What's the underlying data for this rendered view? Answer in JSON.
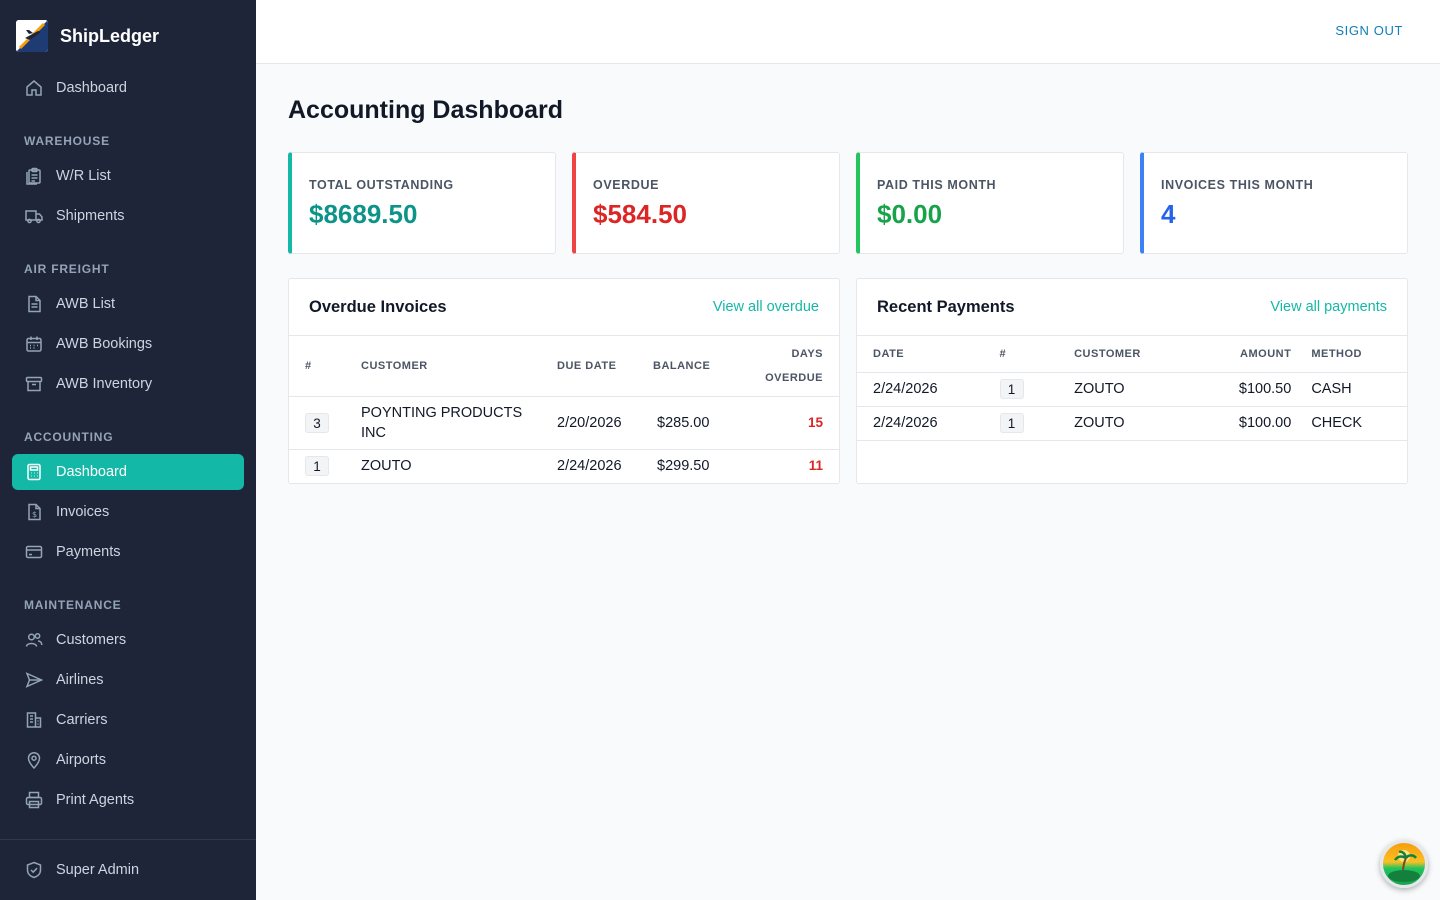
{
  "app": {
    "name": "ShipLedger"
  },
  "header": {
    "sign_out": "SIGN OUT"
  },
  "nav": {
    "top": [
      {
        "label": "Dashboard",
        "icon": "home-icon"
      }
    ],
    "sections": [
      {
        "title": "WAREHOUSE",
        "items": [
          {
            "label": "W/R List",
            "icon": "clipboard-list-icon"
          },
          {
            "label": "Shipments",
            "icon": "truck-icon"
          }
        ]
      },
      {
        "title": "AIR FREIGHT",
        "items": [
          {
            "label": "AWB List",
            "icon": "document-icon"
          },
          {
            "label": "AWB Bookings",
            "icon": "calendar-icon"
          },
          {
            "label": "AWB Inventory",
            "icon": "archive-box-icon"
          }
        ]
      },
      {
        "title": "ACCOUNTING",
        "items": [
          {
            "label": "Dashboard",
            "icon": "calculator-icon",
            "active": true
          },
          {
            "label": "Invoices",
            "icon": "invoice-dollar-icon"
          },
          {
            "label": "Payments",
            "icon": "credit-card-icon"
          }
        ]
      },
      {
        "title": "MAINTENANCE",
        "items": [
          {
            "label": "Customers",
            "icon": "users-icon"
          },
          {
            "label": "Airlines",
            "icon": "paper-plane-icon"
          },
          {
            "label": "Carriers",
            "icon": "building-icon"
          },
          {
            "label": "Airports",
            "icon": "map-pin-icon"
          },
          {
            "label": "Print Agents",
            "icon": "printer-icon"
          }
        ]
      }
    ],
    "footer": {
      "label": "Super Admin",
      "icon": "shield-check-icon"
    }
  },
  "page": {
    "title": "Accounting Dashboard"
  },
  "stats": [
    {
      "label": "TOTAL OUTSTANDING",
      "value": "$8689.50",
      "color": "#0d9488"
    },
    {
      "label": "OVERDUE",
      "value": "$584.50",
      "color": "#dc2626"
    },
    {
      "label": "PAID THIS MONTH",
      "value": "$0.00",
      "color": "#16a34a"
    },
    {
      "label": "INVOICES THIS MONTH",
      "value": "4",
      "color": "#2563eb"
    }
  ],
  "overdue": {
    "title": "Overdue Invoices",
    "link": "View all overdue",
    "columns": {
      "num": "#",
      "customer": "CUSTOMER",
      "due": "DUE DATE",
      "balance": "BALANCE",
      "days_1": "DAYS",
      "days_2": "OVERDUE"
    },
    "rows": [
      {
        "num": "3",
        "customer": "POYNTING PRODUCTS INC",
        "due": "2/20/2026",
        "balance": "$285.00",
        "days": "15"
      },
      {
        "num": "1",
        "customer": "ZOUTO",
        "due": "2/24/2026",
        "balance": "$299.50",
        "days": "11"
      }
    ]
  },
  "payments": {
    "title": "Recent Payments",
    "link": "View all payments",
    "columns": {
      "date": "DATE",
      "num": "#",
      "customer": "CUSTOMER",
      "amount": "AMOUNT",
      "method": "METHOD"
    },
    "rows": [
      {
        "date": "2/24/2026",
        "num": "1",
        "customer": "ZOUTO",
        "amount": "$100.50",
        "method": "CASH"
      },
      {
        "date": "2/24/2026",
        "num": "1",
        "customer": "ZOUTO",
        "amount": "$100.00",
        "method": "CHECK"
      }
    ]
  }
}
